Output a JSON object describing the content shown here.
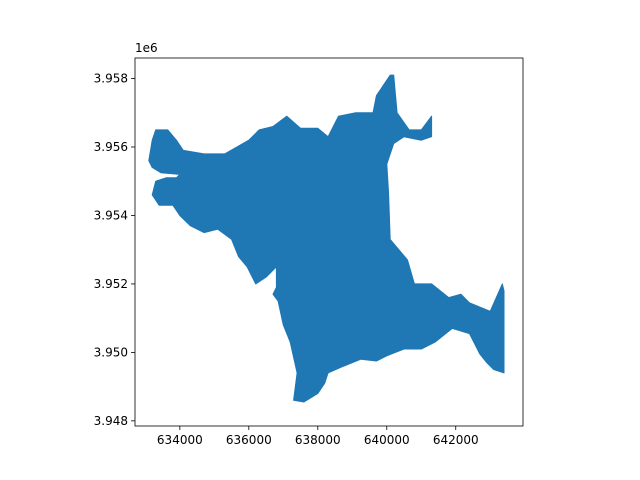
{
  "chart_data": {
    "type": "map",
    "title": "",
    "xlabel": "",
    "ylabel": "",
    "y_offset_label": "1e6",
    "xlim": [
      632700,
      643950
    ],
    "ylim": [
      3947850,
      3958600
    ],
    "x_ticks": [
      {
        "value": 634000,
        "label": "634000"
      },
      {
        "value": 636000,
        "label": "636000"
      },
      {
        "value": 638000,
        "label": "638000"
      },
      {
        "value": 640000,
        "label": "640000"
      },
      {
        "value": 642000,
        "label": "642000"
      }
    ],
    "y_ticks": [
      {
        "value": 3948000,
        "label": "3.948"
      },
      {
        "value": 3950000,
        "label": "3.950"
      },
      {
        "value": 3952000,
        "label": "3.952"
      },
      {
        "value": 3954000,
        "label": "3.954"
      },
      {
        "value": 3956000,
        "label": "3.956"
      },
      {
        "value": 3958000,
        "label": "3.958"
      }
    ],
    "polygon_color": "#1f77b4",
    "grid": false,
    "polygon": [
      [
        633300,
        3956500
      ],
      [
        633650,
        3956500
      ],
      [
        633900,
        3956200
      ],
      [
        634100,
        3955900
      ],
      [
        634700,
        3955800
      ],
      [
        635300,
        3955800
      ],
      [
        636000,
        3956200
      ],
      [
        636300,
        3956500
      ],
      [
        636700,
        3956600
      ],
      [
        637100,
        3956900
      ],
      [
        637500,
        3956550
      ],
      [
        638000,
        3956550
      ],
      [
        638300,
        3956300
      ],
      [
        638600,
        3956900
      ],
      [
        639100,
        3957000
      ],
      [
        639600,
        3957000
      ],
      [
        639700,
        3957500
      ],
      [
        640100,
        3958100
      ],
      [
        640200,
        3958100
      ],
      [
        640300,
        3957000
      ],
      [
        640650,
        3956500
      ],
      [
        641000,
        3956500
      ],
      [
        641300,
        3956900
      ],
      [
        641300,
        3956300
      ],
      [
        641000,
        3956200
      ],
      [
        640500,
        3956300
      ],
      [
        640200,
        3956100
      ],
      [
        640000,
        3955500
      ],
      [
        640050,
        3954700
      ],
      [
        640100,
        3953300
      ],
      [
        640600,
        3952700
      ],
      [
        640800,
        3952000
      ],
      [
        641300,
        3952000
      ],
      [
        641800,
        3951600
      ],
      [
        642150,
        3951700
      ],
      [
        642400,
        3951450
      ],
      [
        643000,
        3951200
      ],
      [
        643350,
        3952000
      ],
      [
        643400,
        3951800
      ],
      [
        643400,
        3949400
      ],
      [
        643100,
        3949500
      ],
      [
        642900,
        3949700
      ],
      [
        642700,
        3949950
      ],
      [
        642400,
        3950550
      ],
      [
        641900,
        3950700
      ],
      [
        641400,
        3950300
      ],
      [
        641000,
        3950100
      ],
      [
        640500,
        3950100
      ],
      [
        640000,
        3949900
      ],
      [
        639700,
        3949750
      ],
      [
        639250,
        3949800
      ],
      [
        638750,
        3949600
      ],
      [
        638300,
        3949400
      ],
      [
        638200,
        3949100
      ],
      [
        638000,
        3948800
      ],
      [
        637600,
        3948550
      ],
      [
        637300,
        3948600
      ],
      [
        637400,
        3949400
      ],
      [
        637200,
        3950300
      ],
      [
        637000,
        3950800
      ],
      [
        636850,
        3951500
      ],
      [
        636700,
        3951700
      ],
      [
        636800,
        3951900
      ],
      [
        636800,
        3952500
      ],
      [
        636500,
        3952200
      ],
      [
        636200,
        3952000
      ],
      [
        635950,
        3952500
      ],
      [
        635700,
        3952800
      ],
      [
        635500,
        3953300
      ],
      [
        635100,
        3953600
      ],
      [
        634700,
        3953500
      ],
      [
        634300,
        3953700
      ],
      [
        634000,
        3954000
      ],
      [
        633800,
        3954300
      ],
      [
        633400,
        3954300
      ],
      [
        633200,
        3954600
      ],
      [
        633300,
        3955000
      ],
      [
        633600,
        3955100
      ],
      [
        633900,
        3955100
      ],
      [
        634000,
        3955200
      ],
      [
        633450,
        3955250
      ],
      [
        633200,
        3955400
      ],
      [
        633100,
        3955600
      ],
      [
        633200,
        3956200
      ]
    ]
  }
}
